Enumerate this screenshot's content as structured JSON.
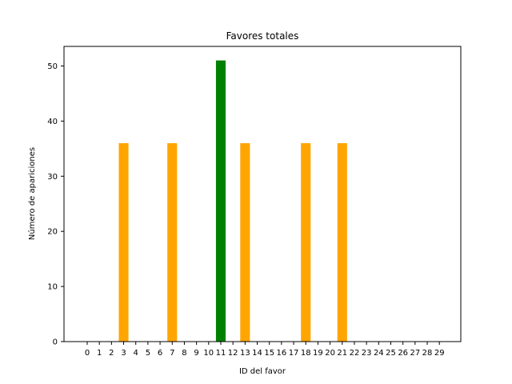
{
  "chart_data": {
    "type": "bar",
    "title": "Favores totales",
    "xlabel": "ID del favor",
    "ylabel": "Número de apariciones",
    "categories": [
      "0",
      "1",
      "2",
      "3",
      "4",
      "5",
      "6",
      "7",
      "8",
      "9",
      "10",
      "11",
      "12",
      "13",
      "14",
      "15",
      "16",
      "17",
      "18",
      "19",
      "20",
      "21",
      "22",
      "23",
      "24",
      "25",
      "26",
      "27",
      "28",
      "29"
    ],
    "values": [
      0,
      0,
      0,
      36,
      0,
      0,
      0,
      36,
      0,
      0,
      0,
      51,
      0,
      36,
      0,
      0,
      0,
      0,
      36,
      0,
      0,
      36,
      0,
      0,
      0,
      0,
      0,
      0,
      0,
      0
    ],
    "bar_colors": {
      "default": "#ffa500",
      "highlight": "#008000",
      "highlight_index": 11
    },
    "ylim": [
      0,
      53.55
    ],
    "yticks": [
      0,
      10,
      20,
      30,
      40,
      50
    ],
    "grid": false,
    "legend": "none"
  }
}
